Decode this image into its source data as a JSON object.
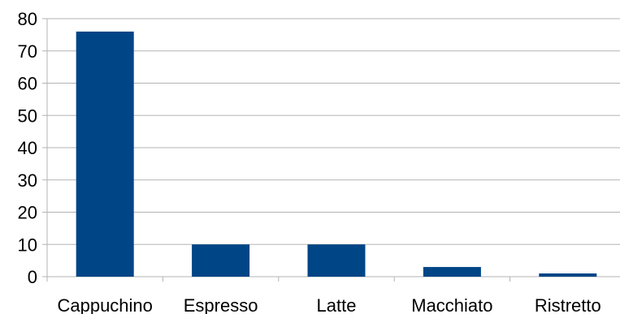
{
  "chart_data": {
    "type": "bar",
    "title": "",
    "xlabel": "",
    "ylabel": "",
    "categories": [
      "Cappuchino",
      "Espresso",
      "Latte",
      "Macchiato",
      "Ristretto"
    ],
    "series": [
      {
        "values": [
          76,
          10,
          10,
          3,
          1
        ]
      }
    ],
    "ylim": [
      0,
      80
    ],
    "yticks": [
      0,
      10,
      20,
      30,
      40,
      50,
      60,
      70,
      80
    ],
    "grid": true,
    "legend": "none",
    "colors": {
      "bar": "#004586",
      "grid": "#b3b3b3",
      "axis": "#b3b3b3",
      "text": "#000000"
    }
  }
}
